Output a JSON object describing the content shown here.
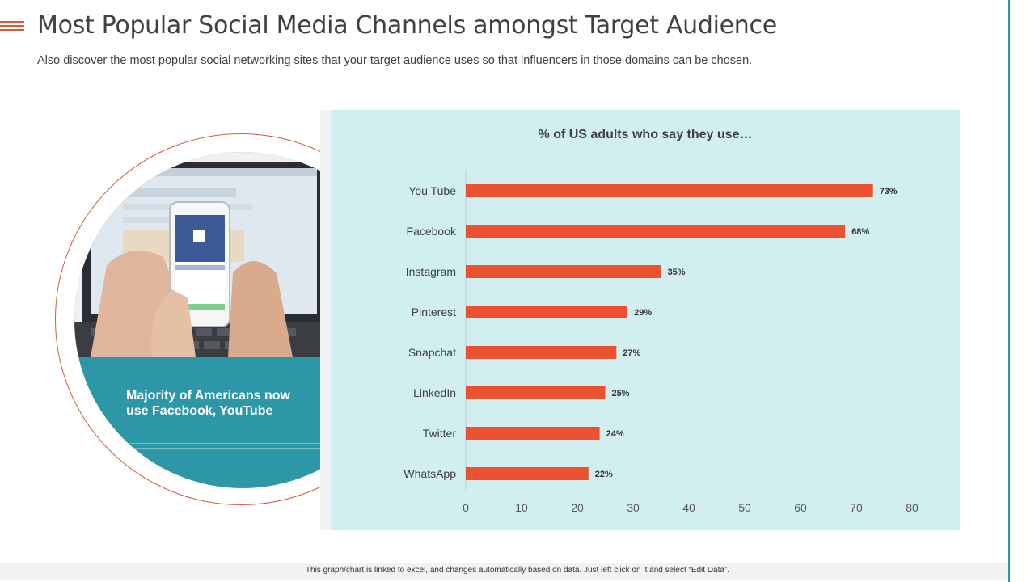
{
  "header": {
    "title": "Most Popular Social Media Channels amongst Target Audience",
    "subtitle": "Also discover the most popular social networking sites that your target audience uses so that influencers in those domains can be chosen."
  },
  "visual": {
    "callout": "Majority of Americans now use Facebook, YouTube"
  },
  "footer": {
    "note": "This graph/chart is linked to excel, and changes automatically based on data. Just left click on it and select “Edit Data”."
  },
  "colors": {
    "accent": "#e4583a",
    "bar": "#ec5230",
    "teal": "#2e97a7",
    "panel": "#d1eef1"
  },
  "chart_data": {
    "type": "bar",
    "orientation": "horizontal",
    "title": "% of US adults who say they use…",
    "xlabel": "",
    "ylabel": "",
    "categories": [
      "You Tube",
      "Facebook",
      "Instagram",
      "Pinterest",
      "Snapchat",
      "LinkedIn",
      "Twitter",
      "WhatsApp"
    ],
    "values": [
      73,
      68,
      35,
      29,
      27,
      25,
      24,
      22
    ],
    "value_labels": [
      "73%",
      "68%",
      "35%",
      "29%",
      "27%",
      "25%",
      "24%",
      "22%"
    ],
    "xlim": [
      0,
      80
    ],
    "xticks": [
      0,
      10,
      20,
      30,
      40,
      50,
      60,
      70,
      80
    ],
    "grid": false,
    "legend": "none"
  }
}
